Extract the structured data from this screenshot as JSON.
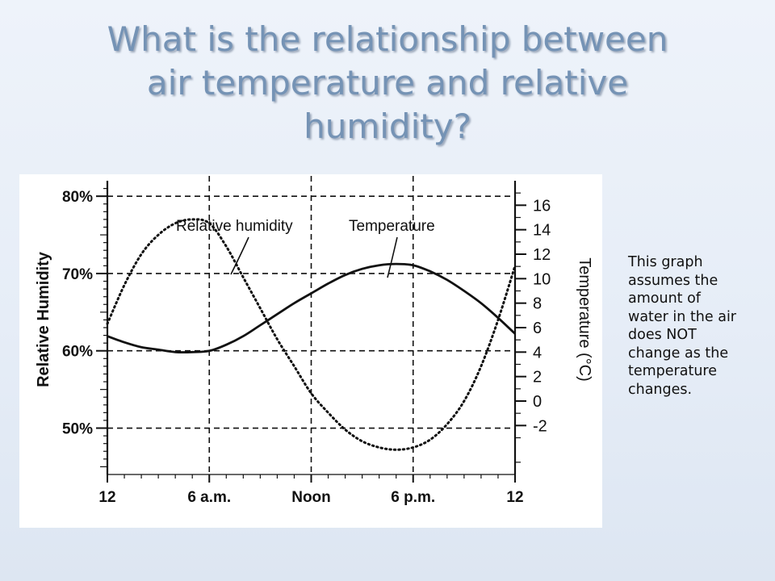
{
  "slide": {
    "title_lines": [
      "What is the relationship between",
      "air temperature and relative",
      "humidity?"
    ],
    "note_lines": [
      "This graph",
      "assumes the",
      "amount of",
      "water in the air",
      "does NOT",
      "change as the",
      "temperature",
      "changes."
    ]
  },
  "colors": {
    "title": "#7593b5",
    "background": "#e8eef7",
    "ink": "#111111"
  },
  "chart_data": {
    "type": "line",
    "title": "",
    "x_ticks": [
      "12",
      "6 a.m.",
      "Noon",
      "6 p.m.",
      "12"
    ],
    "x_tick_hours": [
      0,
      6,
      12,
      18,
      24
    ],
    "xlim": [
      0,
      24
    ],
    "ylabel": "Relative Humidity",
    "ylim": [
      44,
      82
    ],
    "y_ticks": [
      "50%",
      "60%",
      "70%",
      "80%"
    ],
    "y_tick_values": [
      50,
      60,
      70,
      80
    ],
    "y2label": "Temperature (°C)",
    "y2lim": [
      -6,
      18
    ],
    "y2_ticks": [
      "-2",
      "0",
      "2",
      "4",
      "6",
      "8",
      "10",
      "12",
      "14",
      "16"
    ],
    "y2_tick_values": [
      -2,
      0,
      2,
      4,
      6,
      8,
      10,
      12,
      14,
      16
    ],
    "grid": true,
    "series": [
      {
        "name": "Relative humidity",
        "axis": "left",
        "style": "dotted",
        "x": [
          0,
          1,
          2,
          3,
          4,
          5,
          6,
          7,
          8,
          9,
          10,
          11,
          12,
          13,
          14,
          15,
          16,
          17,
          18,
          19,
          20,
          21,
          22,
          23,
          24
        ],
        "values": [
          63.5,
          68.5,
          72.5,
          75,
          76.5,
          77,
          76.5,
          73.5,
          69.5,
          65.5,
          61.5,
          58,
          54.5,
          52,
          49.8,
          48.3,
          47.5,
          47.2,
          47.5,
          48.5,
          50.5,
          53.5,
          58,
          64,
          71
        ]
      },
      {
        "name": "Temperature",
        "axis": "right",
        "style": "solid",
        "x": [
          0,
          1,
          2,
          3,
          4,
          5,
          6,
          7,
          8,
          9,
          10,
          11,
          12,
          13,
          14,
          15,
          16,
          17,
          18,
          19,
          20,
          21,
          22,
          23,
          24
        ],
        "values": [
          5.3,
          4.8,
          4.4,
          4.2,
          4.0,
          4.0,
          4.1,
          4.6,
          5.3,
          6.2,
          7.1,
          8.0,
          8.8,
          9.6,
          10.3,
          10.8,
          11.1,
          11.2,
          11.1,
          10.6,
          9.9,
          9.0,
          8.0,
          6.8,
          5.5
        ]
      }
    ],
    "annotations": [
      "Relative humidity",
      "Temperature"
    ]
  }
}
